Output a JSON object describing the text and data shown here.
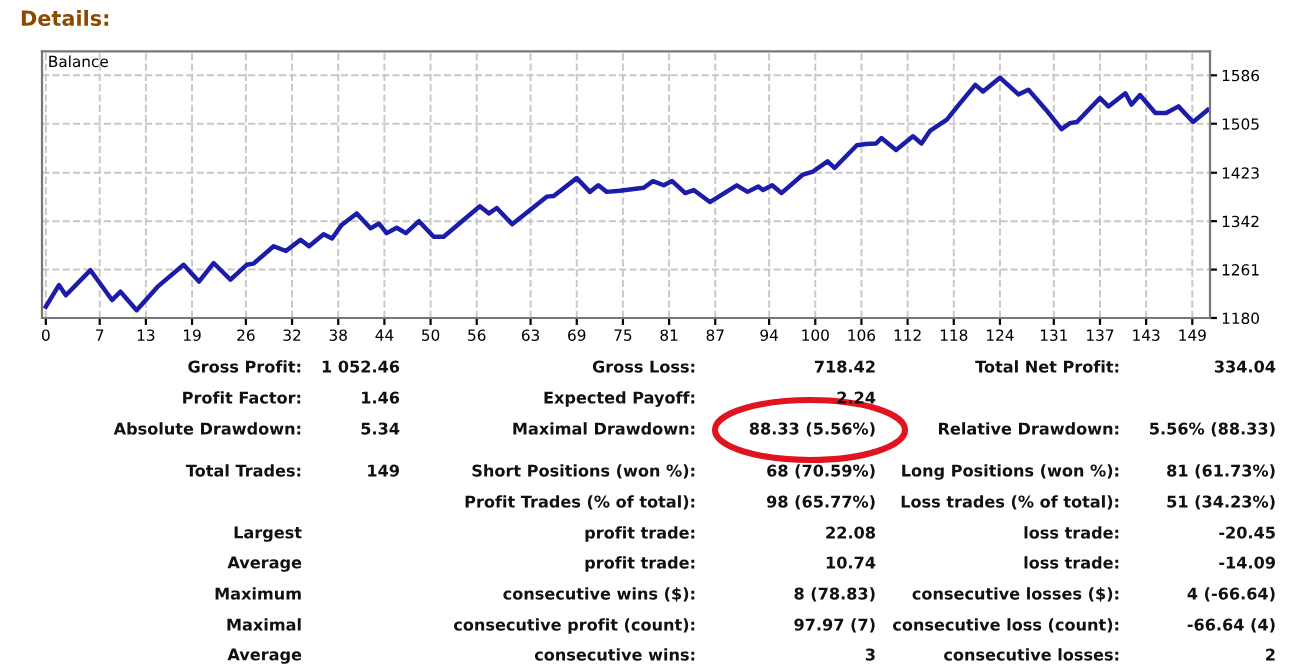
{
  "chart_data": [
    {
      "type": "line",
      "title": "Details:",
      "annotations": [
        "Balance"
      ],
      "x": [
        0,
        1.7,
        2.6,
        5.8,
        8.6,
        9.7,
        11.8,
        14.5,
        17.9,
        19.9,
        21.8,
        24.0,
        26.1,
        27.0,
        29.6,
        31.2,
        33.1,
        34.2,
        36.1,
        37.2,
        38.4,
        40.4,
        42.2,
        43.3,
        44.3,
        45.6,
        46.8,
        48.5,
        50.4,
        51.7,
        56.4,
        57.6,
        58.6,
        60.6,
        65.1,
        66.0,
        69.0,
        70.7,
        71.8,
        72.9,
        74.6,
        77.7,
        78.9,
        80.3,
        81.4,
        83.1,
        84.2,
        86.3,
        89.8,
        91.2,
        92.6,
        93.2,
        94.4,
        95.6,
        98.4,
        99.7,
        101.6,
        102.5,
        105.4,
        106.6,
        107.9,
        108.6,
        110.5,
        112.7,
        113.8,
        114.9,
        117.1,
        118.8,
        120.8,
        121.8,
        124.0,
        126.4,
        127.7,
        130.0,
        132.0,
        133.1,
        134.0,
        137.0,
        138.1,
        140.3,
        141.1,
        142.2,
        144.2,
        145.6,
        147.2,
        149.1,
        151.0
      ],
      "series": [
        {
          "color": "#1c1ca8",
          "values": [
            1199,
            1235,
            1218,
            1260,
            1210,
            1224,
            1193,
            1232,
            1269,
            1241,
            1272,
            1244,
            1269,
            1271,
            1300,
            1292,
            1311,
            1300,
            1320,
            1313,
            1335,
            1355,
            1330,
            1338,
            1322,
            1331,
            1322,
            1342,
            1316,
            1316,
            1367,
            1355,
            1364,
            1337,
            1383,
            1384,
            1414,
            1391,
            1402,
            1391,
            1393,
            1398,
            1409,
            1402,
            1409,
            1389,
            1394,
            1374,
            1402,
            1391,
            1400,
            1394,
            1402,
            1389,
            1420,
            1425,
            1442,
            1431,
            1469,
            1471,
            1472,
            1481,
            1461,
            1484,
            1472,
            1493,
            1512,
            1539,
            1570,
            1559,
            1582,
            1554,
            1562,
            1528,
            1496,
            1506,
            1508,
            1548,
            1534,
            1556,
            1537,
            1553,
            1523,
            1523,
            1534,
            1508,
            1528
          ]
        }
      ],
      "xlim": [
        -0.5,
        151.3
      ],
      "ylim": [
        1180,
        1626
      ],
      "xticks": [
        0,
        7,
        13,
        19,
        26,
        32,
        38,
        44,
        50,
        56,
        63,
        69,
        75,
        81,
        87,
        94,
        100,
        106,
        112,
        118,
        124,
        131,
        137,
        143,
        149
      ],
      "yticks": [
        1180,
        1261,
        1342,
        1423,
        1505,
        1586
      ],
      "grid": true,
      "line_style": "solid",
      "marker": "none"
    },
    {
      "type": "other",
      "annotations": [
        "Gross Profit:",
        "1 052.46",
        "Gross Loss:",
        "718.42",
        "Total Net Profit:",
        "334.04",
        "Profit Factor:",
        "1.46",
        "Expected Payoff:",
        "2.24",
        "Absolute Drawdown:",
        "5.34",
        "Maximal Drawdown:",
        "88.33 (5.56%)",
        "Relative Drawdown:",
        "5.56% (88.33)",
        "Total Trades:",
        "149",
        "Short Positions (won %):",
        "68 (70.59%)",
        "Long Positions (won %):",
        "81 (61.73%)",
        "Profit Trades (% of total):",
        "98 (65.77%)",
        "Loss trades (% of total):",
        "51 (34.23%)",
        "Largest",
        "profit trade:",
        "22.08",
        "loss trade:",
        "-20.45",
        "Average",
        "profit trade:",
        "10.74",
        "loss trade:",
        "-14.09",
        "Maximum",
        "consecutive wins ($):",
        "8 (78.83)",
        "consecutive losses ($):",
        "4 (-66.64)",
        "Maximal",
        "consecutive profit (count):",
        "97.97 (7)",
        "consecutive loss (count):",
        "-66.64 (4)",
        "Average",
        "consecutive wins:",
        "3",
        "consecutive losses:",
        "2"
      ]
    }
  ]
}
